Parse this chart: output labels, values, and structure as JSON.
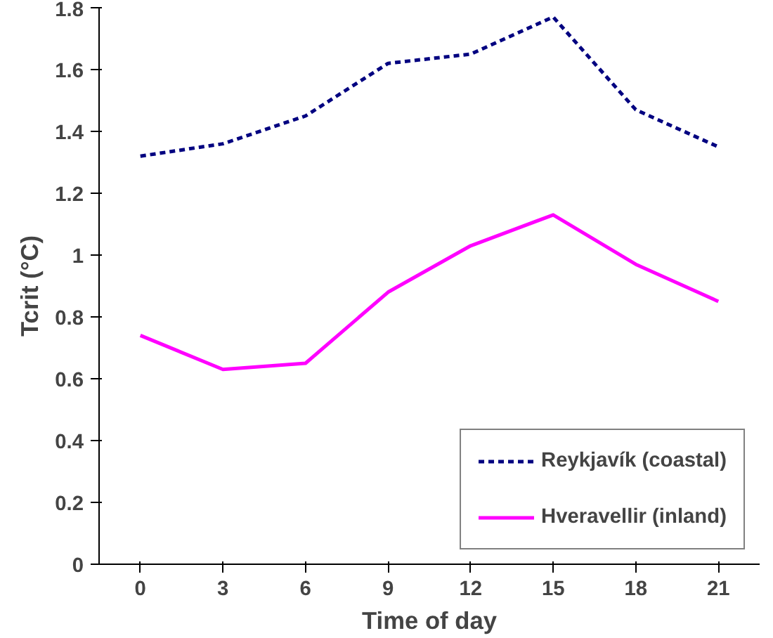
{
  "chart_data": {
    "type": "line",
    "xlabel": "Time of day",
    "ylabel": "Tcrit (°C)",
    "categories": [
      "0",
      "3",
      "6",
      "9",
      "12",
      "15",
      "18",
      "21"
    ],
    "series": [
      {
        "name": "Reykjavík (coastal)",
        "color": "#000080",
        "line_style": "dashed",
        "values": [
          1.32,
          1.36,
          1.45,
          1.62,
          1.65,
          1.77,
          1.47,
          1.35
        ]
      },
      {
        "name": "Hveravellir (inland)",
        "color": "#ff00ff",
        "line_style": "solid",
        "values": [
          0.74,
          0.63,
          0.65,
          0.88,
          1.03,
          1.13,
          0.97,
          0.85
        ]
      }
    ],
    "ylim": [
      0,
      1.8
    ],
    "yticks": [
      0,
      0.2,
      0.4,
      0.6,
      0.8,
      1,
      1.2,
      1.4,
      1.6,
      1.8
    ],
    "grid": false,
    "legend": "bottom right",
    "marker": "none"
  }
}
